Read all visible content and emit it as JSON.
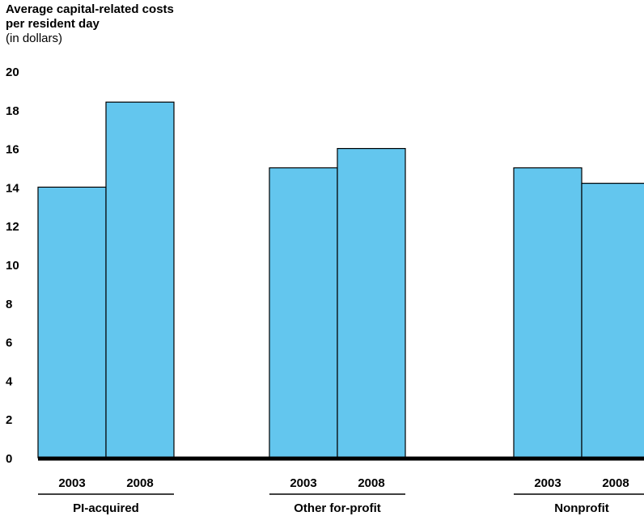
{
  "chart_data": {
    "type": "bar",
    "title": "Average capital-related costs per resident day",
    "title_lines": [
      "Average capital-related costs",
      "per resident day"
    ],
    "unit_label": "(in dollars)",
    "ylim": [
      0,
      20
    ],
    "yticks": [
      "0",
      "2",
      "4",
      "6",
      "8",
      "10",
      "12",
      "14",
      "16",
      "18",
      "20"
    ],
    "bar_color": "#63c6ee",
    "groups": [
      {
        "name": "PI-acquired",
        "bars": [
          {
            "label": "2003",
            "value": 14.0
          },
          {
            "label": "2008",
            "value": 18.4
          }
        ]
      },
      {
        "name": "Other for-profit",
        "bars": [
          {
            "label": "2003",
            "value": 15.0
          },
          {
            "label": "2008",
            "value": 16.0
          }
        ]
      },
      {
        "name": "Nonprofit",
        "bars": [
          {
            "label": "2003",
            "value": 15.0
          },
          {
            "label": "2008",
            "value": 14.2
          }
        ]
      }
    ]
  }
}
